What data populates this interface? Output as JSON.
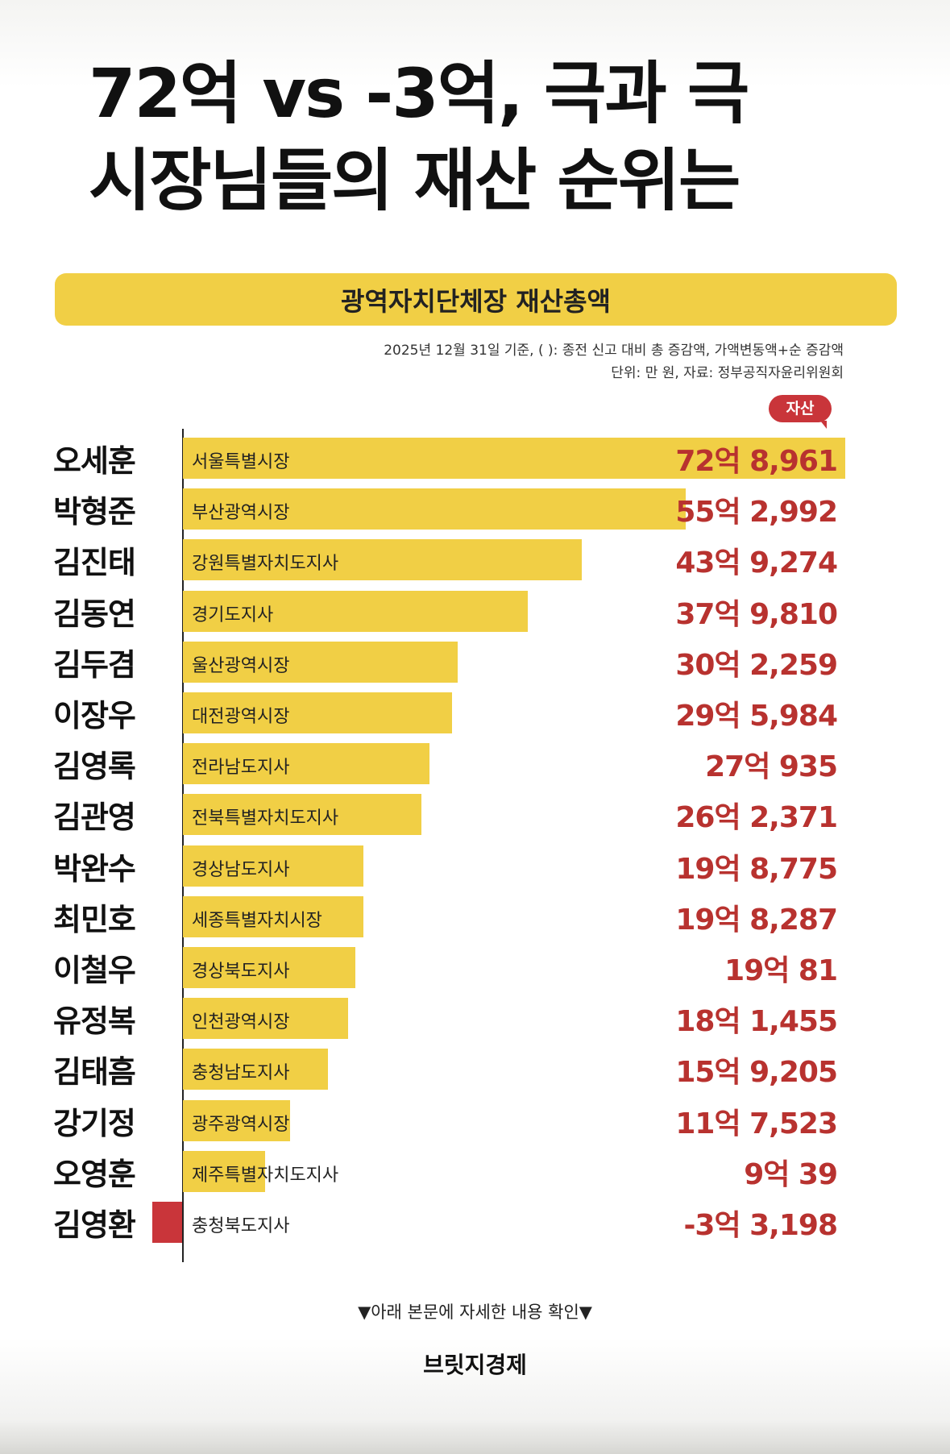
{
  "headline": {
    "line1": "72억 vs -3억, 극과 극",
    "line2": "시장님들의 재산 순위는"
  },
  "banner": "광역자치단체장 재산총액",
  "notes": {
    "line1": "2025년 12월 31일 기준, ( ): 종전 신고 대비 총 증감액, 가액변동액+순 증감액",
    "line2": "단위: 만 원, 자료: 정부공직자윤리위원회"
  },
  "legend_tag": "자산",
  "footer": {
    "cta": "▼아래 본문에 자세한 내용 확인▼",
    "brand": "브릿지경제"
  },
  "colors": {
    "bar": "#f1cf45",
    "negative_bar": "#c9353a",
    "value_text": "#b8322f"
  },
  "chart_data": {
    "type": "bar",
    "orientation": "horizontal",
    "unit": "만 원",
    "xlim": [
      0,
      728961
    ],
    "grid": false,
    "rows": [
      {
        "name": "오세훈",
        "office": "서울특별시장",
        "value": 728961,
        "label": "72억 8,961"
      },
      {
        "name": "박형준",
        "office": "부산광역시장",
        "value": 552992,
        "label": "55억 2,992"
      },
      {
        "name": "김진태",
        "office": "강원특별자치도지사",
        "value": 439274,
        "label": "43억 9,274"
      },
      {
        "name": "김동연",
        "office": "경기도지사",
        "value": 379810,
        "label": "37억 9,810"
      },
      {
        "name": "김두겸",
        "office": "울산광역시장",
        "value": 302259,
        "label": "30억 2,259"
      },
      {
        "name": "이장우",
        "office": "대전광역시장",
        "value": 295984,
        "label": "29억 5,984"
      },
      {
        "name": "김영록",
        "office": "전라남도지사",
        "value": 270935,
        "label": "27억 935"
      },
      {
        "name": "김관영",
        "office": "전북특별자치도지사",
        "value": 262371,
        "label": "26억 2,371"
      },
      {
        "name": "박완수",
        "office": "경상남도지사",
        "value": 198775,
        "label": "19억 8,775"
      },
      {
        "name": "최민호",
        "office": "세종특별자치시장",
        "value": 198287,
        "label": "19억 8,287"
      },
      {
        "name": "이철우",
        "office": "경상북도지사",
        "value": 190081,
        "label": "19억 81"
      },
      {
        "name": "유정복",
        "office": "인천광역시장",
        "value": 181455,
        "label": "18억 1,455"
      },
      {
        "name": "김태흠",
        "office": "충청남도지사",
        "value": 159205,
        "label": "15억 9,205"
      },
      {
        "name": "강기정",
        "office": "광주광역시장",
        "value": 117523,
        "label": "11억 7,523"
      },
      {
        "name": "오영훈",
        "office": "제주특별자치도지사",
        "value": 90039,
        "label": "9억 39"
      },
      {
        "name": "김영환",
        "office": "충청북도지사",
        "value": -33198,
        "label": "-3억 3,198"
      }
    ]
  }
}
